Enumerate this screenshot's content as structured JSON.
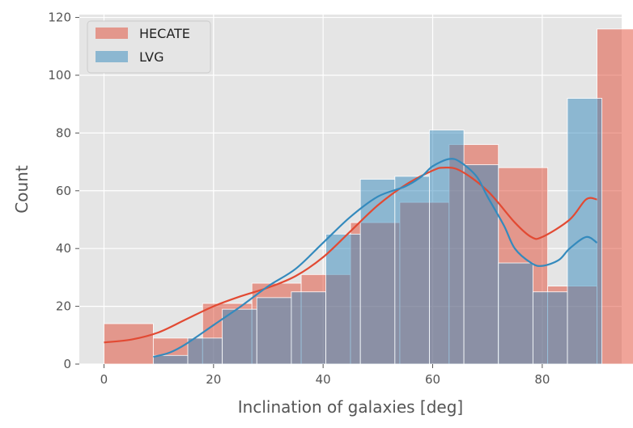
{
  "chart_data": {
    "type": "bar",
    "xlabel": "Inclination of galaxies [deg]",
    "ylabel": "Count",
    "xlim": [
      -4.5,
      94.5
    ],
    "ylim": [
      0,
      121
    ],
    "xticks": [
      0,
      20,
      40,
      60,
      80
    ],
    "yticks": [
      0,
      20,
      40,
      60,
      80,
      100,
      120
    ],
    "grid": true,
    "legend_position": "top-left",
    "background": "#e5e5e5",
    "series": [
      {
        "name": "HECATE",
        "color": "#e24a33",
        "bins": [
          {
            "x0": 0,
            "x1": 9,
            "count": 14
          },
          {
            "x0": 9,
            "x1": 18,
            "count": 9
          },
          {
            "x0": 18,
            "x1": 27,
            "count": 21
          },
          {
            "x0": 27,
            "x1": 36,
            "count": 28
          },
          {
            "x0": 36,
            "x1": 45,
            "count": 31
          },
          {
            "x0": 45,
            "x1": 54,
            "count": 49
          },
          {
            "x0": 54,
            "x1": 63,
            "count": 56
          },
          {
            "x0": 63,
            "x1": 72,
            "count": 76
          },
          {
            "x0": 72,
            "x1": 81,
            "count": 68
          },
          {
            "x0": 81,
            "x1": 90,
            "count": 27
          },
          {
            "x0": 90,
            "x1": 99,
            "count": 116
          }
        ],
        "kde": [
          [
            0,
            7.5
          ],
          [
            5,
            8.5
          ],
          [
            10,
            11
          ],
          [
            15,
            15.5
          ],
          [
            20,
            20
          ],
          [
            25,
            23.5
          ],
          [
            30,
            26.5
          ],
          [
            35,
            30.5
          ],
          [
            40,
            37
          ],
          [
            45,
            46
          ],
          [
            50,
            55
          ],
          [
            55,
            62
          ],
          [
            60,
            67
          ],
          [
            62,
            68
          ],
          [
            65,
            67
          ],
          [
            70,
            60
          ],
          [
            75,
            49
          ],
          [
            78,
            44
          ],
          [
            80,
            44
          ],
          [
            85,
            50
          ],
          [
            88,
            57
          ],
          [
            90,
            57
          ]
        ]
      },
      {
        "name": "LVG",
        "color": "#348abd",
        "bins": [
          {
            "x0": 9,
            "x1": 15.3,
            "count": 3
          },
          {
            "x0": 15.3,
            "x1": 21.6,
            "count": 9
          },
          {
            "x0": 21.6,
            "x1": 27.9,
            "count": 19
          },
          {
            "x0": 27.9,
            "x1": 34.2,
            "count": 23
          },
          {
            "x0": 34.2,
            "x1": 40.5,
            "count": 25
          },
          {
            "x0": 40.5,
            "x1": 46.8,
            "count": 45
          },
          {
            "x0": 46.8,
            "x1": 53.1,
            "count": 64
          },
          {
            "x0": 53.1,
            "x1": 59.4,
            "count": 65
          },
          {
            "x0": 59.4,
            "x1": 65.7,
            "count": 81
          },
          {
            "x0": 65.7,
            "x1": 72.0,
            "count": 69
          },
          {
            "x0": 72.0,
            "x1": 78.3,
            "count": 35
          },
          {
            "x0": 78.3,
            "x1": 84.6,
            "count": 25
          },
          {
            "x0": 84.6,
            "x1": 90.9,
            "count": 92
          }
        ],
        "kde": [
          [
            9,
            2.5
          ],
          [
            12,
            4
          ],
          [
            15,
            7
          ],
          [
            20,
            13.5
          ],
          [
            25,
            20
          ],
          [
            30,
            27
          ],
          [
            35,
            33
          ],
          [
            40,
            42
          ],
          [
            45,
            51
          ],
          [
            50,
            58
          ],
          [
            55,
            61.5
          ],
          [
            58,
            65
          ],
          [
            60,
            68.5
          ],
          [
            63,
            71
          ],
          [
            65,
            70
          ],
          [
            68,
            65
          ],
          [
            70,
            58
          ],
          [
            73,
            48
          ],
          [
            75,
            40
          ],
          [
            78,
            35
          ],
          [
            80,
            34
          ],
          [
            83,
            36
          ],
          [
            85,
            40
          ],
          [
            88,
            44
          ],
          [
            90,
            42
          ]
        ]
      }
    ]
  }
}
